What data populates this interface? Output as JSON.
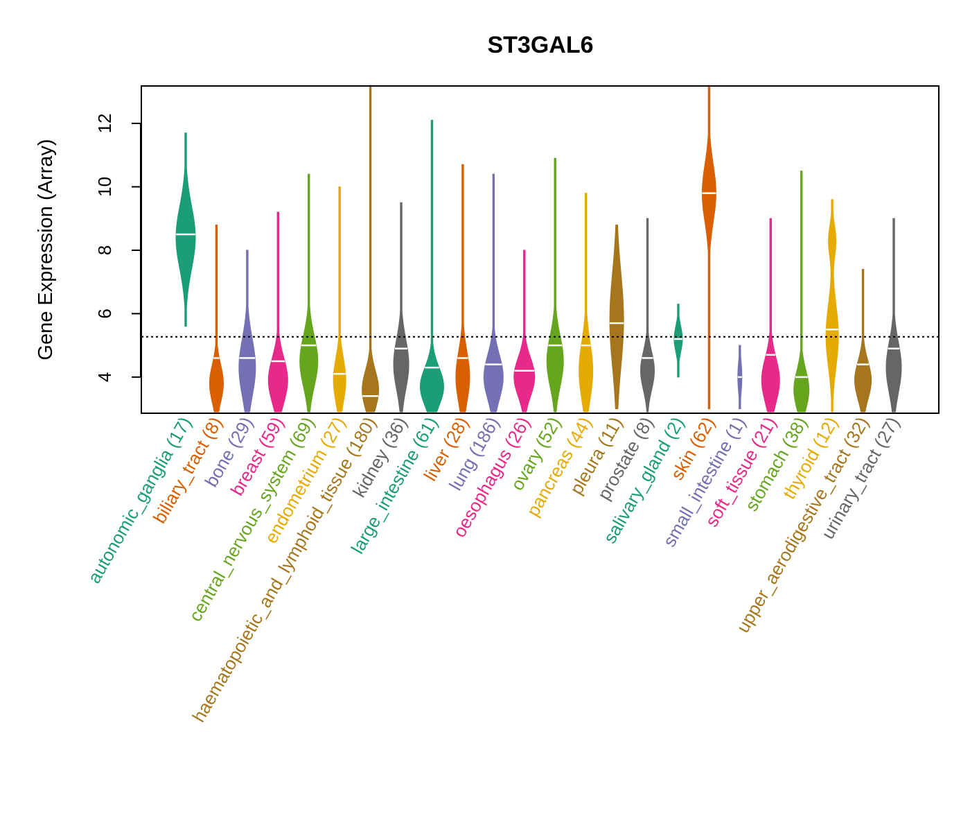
{
  "chart_data": {
    "type": "violin",
    "title": "ST3GAL6",
    "xlabel": "",
    "ylabel": "Gene Expression (Array)",
    "ylim": [
      2.86,
      13.18
    ],
    "yticks": [
      4,
      6,
      8,
      10,
      12
    ],
    "reference_line": 5.27,
    "grid": false,
    "categories": [
      {
        "label": "autonomic_ganglia (17)",
        "color": "#1B9E77",
        "min": 5.6,
        "max": 11.7,
        "median": 8.5,
        "modes": [
          [
            8.4,
            1.0,
            1
          ]
        ],
        "width": 14
      },
      {
        "label": "biliary_tract (8)",
        "color": "#D95F02",
        "min": 2.9,
        "max": 8.8,
        "median": 4.6,
        "modes": [
          [
            3.8,
            0.6,
            1
          ]
        ],
        "width": 10
      },
      {
        "label": "bone (29)",
        "color": "#7570B3",
        "min": 2.9,
        "max": 8.0,
        "median": 4.6,
        "modes": [
          [
            4.3,
            0.9,
            1
          ]
        ],
        "width": 12
      },
      {
        "label": "breast (59)",
        "color": "#E7298A",
        "min": 2.9,
        "max": 9.2,
        "median": 4.5,
        "modes": [
          [
            3.9,
            0.7,
            1
          ]
        ],
        "width": 14
      },
      {
        "label": "central_nervous_system (69)",
        "color": "#66A61E",
        "min": 2.9,
        "max": 10.4,
        "median": 5.0,
        "modes": [
          [
            4.5,
            0.8,
            1
          ]
        ],
        "width": 13
      },
      {
        "label": "endometrium (27)",
        "color": "#E6AB02",
        "min": 2.9,
        "max": 10.0,
        "median": 4.1,
        "modes": [
          [
            3.9,
            0.7,
            1
          ]
        ],
        "width": 9
      },
      {
        "label": "haematopoietic_and_lymphoid_tissue (180)",
        "color": "#A6761D",
        "min": 2.9,
        "max": 13.2,
        "median": 3.4,
        "modes": [
          [
            3.6,
            0.6,
            1
          ]
        ],
        "width": 12
      },
      {
        "label": "kidney (36)",
        "color": "#666666",
        "min": 2.9,
        "max": 9.5,
        "median": 4.9,
        "modes": [
          [
            4.4,
            0.8,
            1
          ]
        ],
        "width": 11
      },
      {
        "label": "large_intestine (61)",
        "color": "#1B9E77",
        "min": 2.9,
        "max": 12.1,
        "median": 4.3,
        "modes": [
          [
            3.7,
            0.6,
            1
          ]
        ],
        "width": 17
      },
      {
        "label": "liver (28)",
        "color": "#D95F02",
        "min": 2.9,
        "max": 10.7,
        "median": 4.6,
        "modes": [
          [
            4.0,
            0.8,
            1
          ]
        ],
        "width": 10
      },
      {
        "label": "lung (186)",
        "color": "#7570B3",
        "min": 2.9,
        "max": 10.4,
        "median": 4.4,
        "modes": [
          [
            4.0,
            0.7,
            1
          ]
        ],
        "width": 14
      },
      {
        "label": "oesophagus (26)",
        "color": "#E7298A",
        "min": 2.9,
        "max": 8.0,
        "median": 4.2,
        "modes": [
          [
            4.0,
            0.6,
            1
          ]
        ],
        "width": 15
      },
      {
        "label": "ovary (52)",
        "color": "#66A61E",
        "min": 2.9,
        "max": 10.9,
        "median": 5.0,
        "modes": [
          [
            4.5,
            0.8,
            1
          ]
        ],
        "width": 12
      },
      {
        "label": "pancreas (44)",
        "color": "#E6AB02",
        "min": 2.9,
        "max": 9.8,
        "median": 5.0,
        "modes": [
          [
            4.2,
            0.9,
            1
          ]
        ],
        "width": 10
      },
      {
        "label": "pleura (11)",
        "color": "#A6761D",
        "min": 3.0,
        "max": 8.8,
        "median": 5.7,
        "modes": [
          [
            5.8,
            1.5,
            1
          ]
        ],
        "width": 10
      },
      {
        "label": "prostate (8)",
        "color": "#666666",
        "min": 2.9,
        "max": 9.0,
        "median": 4.6,
        "modes": [
          [
            4.2,
            0.6,
            1
          ]
        ],
        "width": 10
      },
      {
        "label": "salivary_gland (2)",
        "color": "#1B9E77",
        "min": 4.0,
        "max": 6.3,
        "median": 5.2,
        "modes": [
          [
            5.2,
            0.4,
            1
          ]
        ],
        "width": 6
      },
      {
        "label": "skin (62)",
        "color": "#D95F02",
        "min": 3.0,
        "max": 13.2,
        "median": 9.8,
        "modes": [
          [
            9.8,
            0.9,
            1
          ]
        ],
        "width": 10
      },
      {
        "label": "small_intestine (1)",
        "color": "#7570B3",
        "min": 3.0,
        "max": 5.0,
        "median": 4.0,
        "modes": [
          [
            4.0,
            0.5,
            1
          ]
        ],
        "width": 3
      },
      {
        "label": "soft_tissue (21)",
        "color": "#E7298A",
        "min": 2.9,
        "max": 9.0,
        "median": 4.7,
        "modes": [
          [
            3.9,
            0.7,
            1
          ]
        ],
        "width": 13
      },
      {
        "label": "stomach (38)",
        "color": "#66A61E",
        "min": 2.9,
        "max": 10.5,
        "median": 4.0,
        "modes": [
          [
            3.6,
            0.6,
            1
          ]
        ],
        "width": 11
      },
      {
        "label": "thyroid (12)",
        "color": "#E6AB02",
        "min": 2.9,
        "max": 9.6,
        "median": 5.5,
        "modes": [
          [
            5.3,
            1.0,
            1
          ],
          [
            8.3,
            0.5,
            0.6
          ]
        ],
        "width": 9
      },
      {
        "label": "upper_aerodigestive_tract (32)",
        "color": "#A6761D",
        "min": 2.9,
        "max": 7.4,
        "median": 4.4,
        "modes": [
          [
            3.9,
            0.6,
            1
          ]
        ],
        "width": 12
      },
      {
        "label": "urinary_tract (27)",
        "color": "#666666",
        "min": 2.9,
        "max": 9.0,
        "median": 4.9,
        "modes": [
          [
            4.3,
            0.8,
            1
          ]
        ],
        "width": 11
      }
    ]
  }
}
